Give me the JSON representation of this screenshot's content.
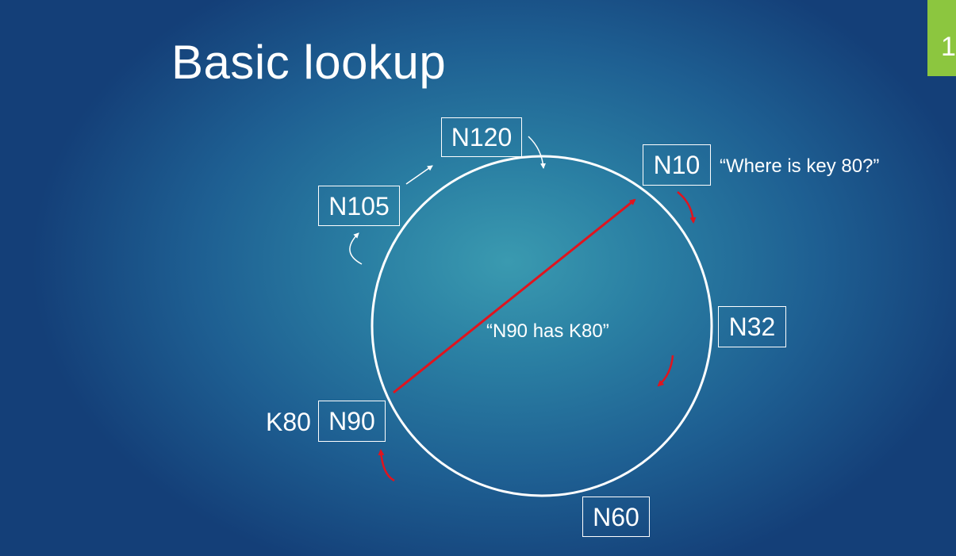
{
  "slide": {
    "title": "Basic lookup",
    "number": "1"
  },
  "ring": {
    "nodes": [
      {
        "id": "n10",
        "label": "N10"
      },
      {
        "id": "n32",
        "label": "N32"
      },
      {
        "id": "n60",
        "label": "N60"
      },
      {
        "id": "n90",
        "label": "N90"
      },
      {
        "id": "n105",
        "label": "N105"
      },
      {
        "id": "n120",
        "label": "N120"
      }
    ],
    "key_label": "K80",
    "query_text": "“Where is key 80?”",
    "answer_text": "“N90 has K80”"
  },
  "colors": {
    "accent_green": "#8cc63f",
    "lookup_red": "#e0141e",
    "ring_white": "#ffffff"
  }
}
